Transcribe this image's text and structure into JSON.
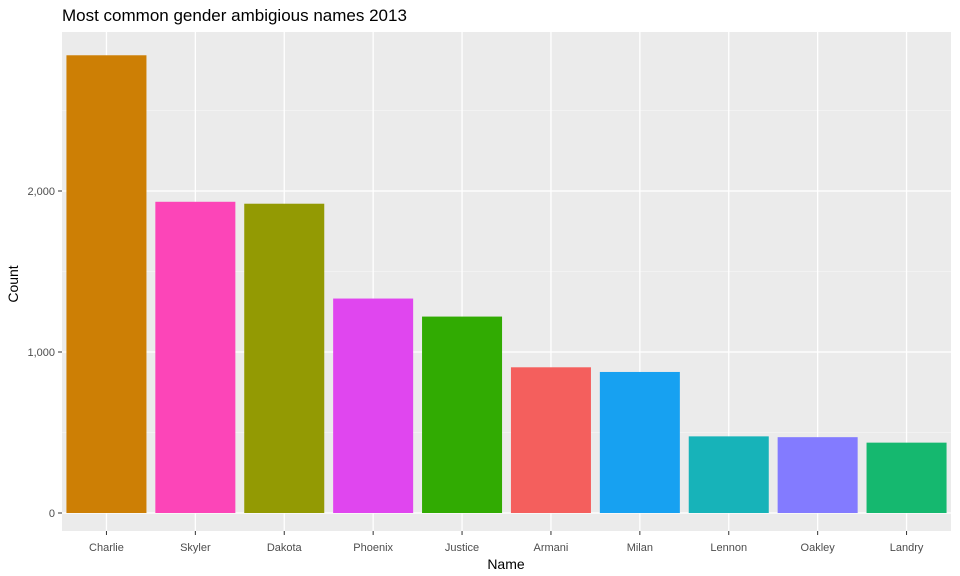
{
  "chart_data": {
    "type": "bar",
    "title": "Most common gender ambigious names 2013",
    "xlabel": "Name",
    "ylabel": "Count",
    "categories": [
      "Charlie",
      "Skyler",
      "Dakota",
      "Phoenix",
      "Justice",
      "Armani",
      "Milan",
      "Lennon",
      "Oakley",
      "Landry"
    ],
    "values": [
      2843,
      1933,
      1921,
      1332,
      1220,
      905,
      876,
      476,
      471,
      437
    ],
    "colors": [
      "#CD7F05",
      "#FC45B8",
      "#939A03",
      "#E046EF",
      "#31AB02",
      "#F45F5D",
      "#17A1F1",
      "#17B3B9",
      "#837BFF",
      "#15B86F"
    ],
    "ylim": [
      0,
      3000
    ],
    "yticks": [
      0,
      1000,
      2000
    ],
    "ytick_labels": [
      "0",
      "1,000",
      "2,000"
    ],
    "grid": true,
    "legend": "none",
    "theme": {
      "panel_bg": "#EBEBEB",
      "grid_major": "#FFFFFF",
      "grid_minor": "#F5F5F5",
      "tick_color": "#333333"
    }
  }
}
